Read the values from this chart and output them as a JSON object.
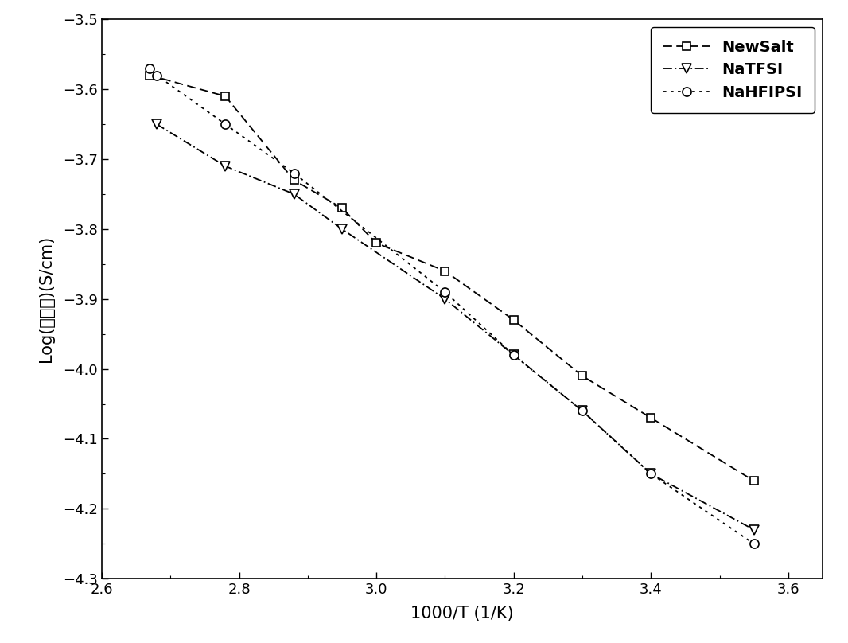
{
  "newsalt_x": [
    2.67,
    2.78,
    2.88,
    2.95,
    3.0,
    3.1,
    3.2,
    3.3,
    3.4,
    3.55
  ],
  "newsalt_y": [
    -3.58,
    -3.61,
    -3.73,
    -3.77,
    -3.82,
    -3.86,
    -3.93,
    -4.01,
    -4.07,
    -4.16
  ],
  "natfsi_x": [
    2.68,
    2.78,
    2.88,
    2.95,
    3.1,
    3.2,
    3.3,
    3.4,
    3.55
  ],
  "natfsi_y": [
    -3.65,
    -3.71,
    -3.75,
    -3.8,
    -3.9,
    -3.98,
    -4.06,
    -4.15,
    -4.23
  ],
  "nahfipsi_x": [
    2.67,
    2.68,
    2.78,
    2.88,
    3.1,
    3.2,
    3.3,
    3.4,
    3.55
  ],
  "nahfipsi_y": [
    -3.57,
    -3.58,
    -3.65,
    -3.72,
    -3.89,
    -3.98,
    -4.06,
    -4.15,
    -4.25
  ],
  "xlabel": "1000/T (1/K)",
  "ylabel": "Log(电导率)(S/cm)",
  "xlim": [
    2.6,
    3.65
  ],
  "ylim": [
    -4.3,
    -3.5
  ],
  "xticks": [
    2.6,
    2.8,
    3.0,
    3.2,
    3.4,
    3.6
  ],
  "yticks": [
    -4.3,
    -4.2,
    -4.1,
    -4.0,
    -3.9,
    -3.8,
    -3.7,
    -3.6,
    -3.5
  ],
  "legend_labels": [
    "NewSalt",
    "NaTFSI",
    "NaHFIPSI"
  ],
  "bg_color": "#ffffff"
}
